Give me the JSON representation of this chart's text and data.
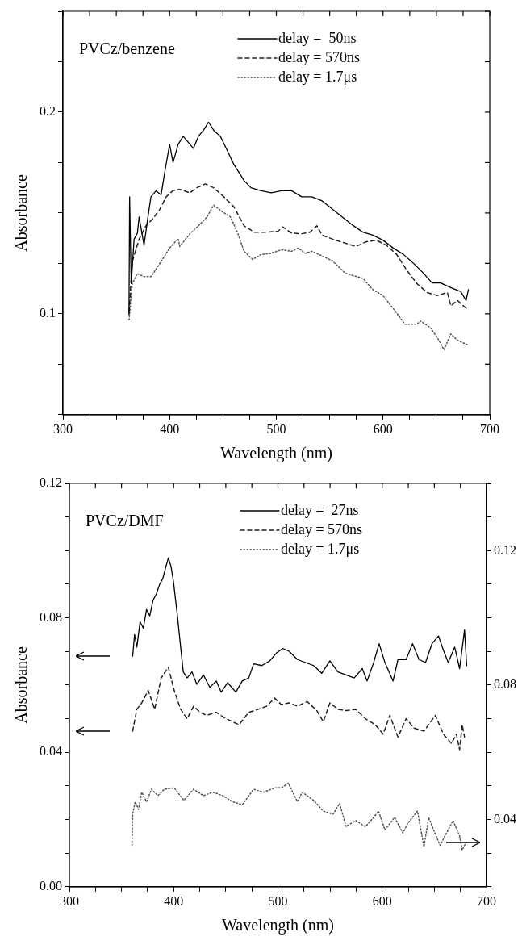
{
  "chart_data": [
    {
      "type": "line",
      "xlabel": "Wavelength (nm)",
      "ylabel": "Absorbance",
      "annotations": [
        "PVCz/benzene"
      ],
      "legend": "top right",
      "marker": "none",
      "grid": false,
      "xlim": [
        300,
        700
      ],
      "xticks": [
        300,
        {
          "value": 325,
          "label": null
        },
        {
          "value": 350,
          "label": null
        },
        {
          "value": 375,
          "label": null
        },
        400,
        {
          "value": 425,
          "label": null
        },
        {
          "value": 450,
          "label": null
        },
        {
          "value": 475,
          "label": null
        },
        500,
        {
          "value": 525,
          "label": null
        },
        {
          "value": 550,
          "label": null
        },
        {
          "value": 575,
          "label": null
        },
        600,
        {
          "value": 625,
          "label": null
        },
        {
          "value": 650,
          "label": null
        },
        {
          "value": 675,
          "label": null
        },
        700
      ],
      "ylim": [
        0.05,
        0.25
      ],
      "yticks": [
        {
          "value": 0.05,
          "label": null
        },
        {
          "value": 0.075,
          "label": null
        },
        {
          "value": 0.1,
          "label": "0.1"
        },
        {
          "value": 0.125,
          "label": null
        },
        {
          "value": 0.15,
          "label": null
        },
        {
          "value": 0.175,
          "label": null
        },
        {
          "value": 0.2,
          "label": "0.2"
        },
        {
          "value": 0.225,
          "label": null
        },
        {
          "value": 0.25,
          "label": null
        }
      ],
      "series": [
        {
          "name": "delay =  50ns",
          "color": "#000000",
          "line_style": "solid",
          "x": [
            361.9,
            362.5,
            364,
            366.7,
            369.8,
            371.4,
            376,
            379.4,
            382.5,
            387.3,
            392,
            396,
            400,
            403.2,
            408,
            412.7,
            417.5,
            422.2,
            427,
            431.7,
            436.5,
            441.3,
            447.6,
            454,
            460.3,
            469.8,
            476.2,
            485.7,
            495.2,
            504.8,
            514.3,
            523.8,
            533.3,
            542.9,
            552.4,
            561.9,
            571.4,
            581,
            590.5,
            600,
            609.5,
            619,
            628.6,
            638.1,
            646,
            654,
            663.5,
            672.9,
            677.8,
            680
          ],
          "values": [
            0.0995,
            0.158,
            0.115,
            0.137,
            0.14,
            0.148,
            0.134,
            0.147,
            0.158,
            0.161,
            0.159,
            0.172,
            0.184,
            0.175,
            0.184,
            0.188,
            0.185,
            0.182,
            0.188,
            0.191,
            0.195,
            0.191,
            0.188,
            0.181,
            0.174,
            0.166,
            0.1625,
            0.161,
            0.16,
            0.161,
            0.161,
            0.158,
            0.158,
            0.156,
            0.152,
            0.148,
            0.144,
            0.1405,
            0.139,
            0.1365,
            0.1326,
            0.1295,
            0.125,
            0.12,
            0.1153,
            0.1153,
            0.113,
            0.111,
            0.1066,
            0.112
          ]
        },
        {
          "name": "delay = 570ns",
          "color": "#222222",
          "line_style": "dashed",
          "x": [
            362,
            365,
            371.4,
            377.8,
            384,
            390.5,
            396.8,
            403,
            409.5,
            419,
            425.4,
            433.3,
            441.3,
            450.8,
            460.3,
            469.8,
            479.4,
            492,
            501.6,
            506.3,
            514.3,
            523.8,
            531.7,
            538,
            542.9,
            555.6,
            565,
            574.6,
            584,
            593.7,
            603.2,
            612.7,
            622.2,
            631.7,
            641.3,
            650.8,
            660.3,
            663.5,
            669.8,
            679.4
          ],
          "values": [
            0.101,
            0.126,
            0.137,
            0.1436,
            0.147,
            0.1515,
            0.158,
            0.161,
            0.1617,
            0.16,
            0.1625,
            0.1644,
            0.1625,
            0.158,
            0.153,
            0.1436,
            0.1405,
            0.1405,
            0.141,
            0.143,
            0.14,
            0.1397,
            0.1405,
            0.1436,
            0.139,
            0.1365,
            0.135,
            0.1334,
            0.1357,
            0.1365,
            0.134,
            0.1295,
            0.1216,
            0.115,
            0.1106,
            0.109,
            0.1106,
            0.104,
            0.1066,
            0.102
          ]
        },
        {
          "name": "delay = 1.7μs",
          "color": "#555555",
          "line_style": "dotted",
          "x": [
            362,
            365,
            369.8,
            376,
            382.5,
            390.5,
            400,
            408,
            409.5,
            419,
            427,
            435,
            441.3,
            449.2,
            457,
            463.5,
            469.8,
            477.8,
            485.7,
            495.2,
            504.8,
            514.3,
            520.6,
            527,
            533.3,
            542.9,
            552.4,
            565,
            581,
            590.5,
            600,
            609.5,
            620.6,
            631.7,
            634.9,
            644.4,
            652.4,
            657.1,
            663.5,
            669.8,
            679.4
          ],
          "values": [
            0.097,
            0.115,
            0.12,
            0.1184,
            0.1184,
            0.1247,
            0.1326,
            0.1373,
            0.1334,
            0.1397,
            0.1436,
            0.148,
            0.1539,
            0.1507,
            0.148,
            0.1405,
            0.131,
            0.127,
            0.1294,
            0.13,
            0.1318,
            0.131,
            0.1326,
            0.13,
            0.131,
            0.1287,
            0.1263,
            0.12,
            0.1176,
            0.112,
            0.109,
            0.1027,
            0.0948,
            0.0948,
            0.0964,
            0.0932,
            0.0869,
            0.0822,
            0.09,
            0.0869,
            0.0846
          ]
        }
      ]
    },
    {
      "type": "line",
      "xlabel": "Wavelength (nm)",
      "ylabel": "Absorbance",
      "annotations": [
        "PVCz/DMF"
      ],
      "legend": "top right",
      "marker": "none",
      "grid": false,
      "xlim": [
        300,
        700
      ],
      "xticks": [
        300,
        {
          "value": 325,
          "label": null
        },
        {
          "value": 350,
          "label": null
        },
        {
          "value": 375,
          "label": null
        },
        400,
        {
          "value": 425,
          "label": null
        },
        {
          "value": 450,
          "label": null
        },
        {
          "value": 475,
          "label": null
        },
        500,
        {
          "value": 525,
          "label": null
        },
        {
          "value": 550,
          "label": null
        },
        {
          "value": 575,
          "label": null
        },
        600,
        {
          "value": 625,
          "label": null
        },
        {
          "value": 650,
          "label": null
        },
        {
          "value": 675,
          "label": null
        },
        700
      ],
      "ylim": [
        0,
        0.12
      ],
      "yticks": [
        {
          "value": 0,
          "label": "0.00"
        },
        {
          "value": 0.01,
          "label": null
        },
        {
          "value": 0.02,
          "label": null
        },
        {
          "value": 0.03,
          "label": null
        },
        {
          "value": 0.04,
          "label": "0.04"
        },
        {
          "value": 0.05,
          "label": null
        },
        {
          "value": 0.06,
          "label": null
        },
        {
          "value": 0.07,
          "label": null
        },
        {
          "value": 0.08,
          "label": "0.08"
        },
        {
          "value": 0.09,
          "label": null
        },
        {
          "value": 0.1,
          "label": null
        },
        {
          "value": 0.11,
          "label": null
        },
        {
          "value": 0.12,
          "label": "0.12"
        }
      ],
      "y2lim": [
        0.02,
        0.14
      ],
      "y2ticks": [
        {
          "value": 0.02,
          "label": null
        },
        {
          "value": 0.03,
          "label": null
        },
        {
          "value": 0.04,
          "label": "0.04"
        },
        {
          "value": 0.05,
          "label": null
        },
        {
          "value": 0.06,
          "label": null
        },
        {
          "value": 0.07,
          "label": null
        },
        {
          "value": 0.08,
          "label": "0.08"
        },
        {
          "value": 0.09,
          "label": null
        },
        {
          "value": 0.1,
          "label": null
        },
        {
          "value": 0.11,
          "label": null
        },
        {
          "value": 0.12,
          "label": "0.12"
        },
        {
          "value": 0.13,
          "label": null
        },
        {
          "value": 0.14,
          "label": null
        }
      ],
      "series": [
        {
          "name": "delay =  27ns",
          "color": "#000000",
          "line_style": "solid",
          "x": [
            360.7,
            362.5,
            364.7,
            367.8,
            370.9,
            374,
            377.1,
            380.2,
            383.4,
            386.5,
            389.6,
            392.7,
            394.9,
            397.4,
            399.8,
            403.6,
            406.7,
            409.2,
            412.9,
            417.6,
            422.2,
            428.5,
            434.7,
            440.9,
            445.6,
            451.8,
            459.6,
            465.8,
            472,
            476.7,
            484.5,
            492.2,
            498.4,
            504.7,
            510.9,
            518.7,
            526.4,
            534.2,
            542,
            549.8,
            557.5,
            565.3,
            573.1,
            580.9,
            585.5,
            591.8,
            597,
            602.6,
            610.4,
            615.1,
            622.9,
            629.1,
            635.3,
            641.5,
            647.7,
            654,
            658.6,
            663.3,
            669.5,
            674.2,
            678.9,
            681
          ],
          "values": [
            0.0686,
            0.075,
            0.0713,
            0.0788,
            0.0769,
            0.0825,
            0.0806,
            0.0852,
            0.0871,
            0.0899,
            0.0917,
            0.0954,
            0.0978,
            0.0954,
            0.0908,
            0.0806,
            0.0713,
            0.0639,
            0.0621,
            0.0639,
            0.0602,
            0.063,
            0.0593,
            0.0612,
            0.0579,
            0.0607,
            0.0579,
            0.0612,
            0.0621,
            0.0663,
            0.0658,
            0.0672,
            0.0695,
            0.0709,
            0.07,
            0.0676,
            0.0667,
            0.0658,
            0.0635,
            0.0672,
            0.0639,
            0.063,
            0.0621,
            0.0649,
            0.0612,
            0.0667,
            0.0723,
            0.0667,
            0.0612,
            0.0676,
            0.0676,
            0.0723,
            0.0676,
            0.0667,
            0.0723,
            0.0746,
            0.0704,
            0.0667,
            0.0713,
            0.0649,
            0.0764,
            0.0658
          ]
        },
        {
          "name": "delay = 570ns",
          "color": "#222222",
          "line_style": "dashed",
          "x": [
            360.7,
            364.7,
            369.4,
            375.6,
            381.8,
            388,
            394.9,
            400.5,
            406.7,
            412.9,
            419.1,
            425.3,
            431.6,
            440.9,
            450.2,
            462.7,
            472,
            481.3,
            489.1,
            496.9,
            503.1,
            510.9,
            518.7,
            528,
            537.3,
            543.5,
            549.8,
            557.5,
            565.3,
            574.6,
            583.9,
            593.3,
            600.9,
            607.3,
            615.1,
            622.9,
            630.6,
            640,
            651,
            658.6,
            666.4,
            671.1,
            674.2,
            676.7,
            678.9
          ],
          "values": [
            0.0463,
            0.0528,
            0.0547,
            0.0584,
            0.0528,
            0.0621,
            0.0653,
            0.0584,
            0.0528,
            0.05,
            0.0537,
            0.0519,
            0.051,
            0.0519,
            0.05,
            0.0482,
            0.0519,
            0.0528,
            0.0537,
            0.0561,
            0.0542,
            0.0547,
            0.0537,
            0.0551,
            0.0524,
            0.0491,
            0.0547,
            0.0528,
            0.0524,
            0.0528,
            0.05,
            0.0482,
            0.0454,
            0.051,
            0.0445,
            0.05,
            0.0472,
            0.0463,
            0.051,
            0.0454,
            0.0426,
            0.0454,
            0.0408,
            0.0482,
            0.0445
          ]
        },
        {
          "name": "delay = 1.7μs",
          "color": "#555555",
          "line_style": "dotted",
          "axis": "y2",
          "x": [
            360,
            360.7,
            363.1,
            366.3,
            369.4,
            374,
            378.7,
            384.9,
            391.1,
            400.5,
            409.8,
            419.1,
            428.5,
            437.8,
            447.1,
            456.5,
            465.8,
            476.7,
            486,
            496.9,
            503.1,
            510,
            518.7,
            523.3,
            534.2,
            543.5,
            552.9,
            559.1,
            565.3,
            574.6,
            583.9,
            591.8,
            596.4,
            602.6,
            611.9,
            619.8,
            624.4,
            633.8,
            640,
            644.6,
            649.3,
            655.5,
            661.7,
            667.9,
            674.2,
            676.7,
            680.4
          ],
          "values": [
            0.0323,
            0.0416,
            0.0453,
            0.043,
            0.0481,
            0.0453,
            0.049,
            0.0471,
            0.049,
            0.0494,
            0.0457,
            0.049,
            0.0471,
            0.0481,
            0.0471,
            0.0453,
            0.0444,
            0.049,
            0.0481,
            0.0494,
            0.0494,
            0.0508,
            0.0453,
            0.0481,
            0.0457,
            0.0425,
            0.0416,
            0.0448,
            0.0379,
            0.0397,
            0.0379,
            0.0406,
            0.0425,
            0.0369,
            0.0406,
            0.036,
            0.0388,
            0.0425,
            0.0319,
            0.0406,
            0.0369,
            0.0323,
            0.036,
            0.0397,
            0.0351,
            0.0309,
            0.0332
          ]
        }
      ]
    }
  ]
}
